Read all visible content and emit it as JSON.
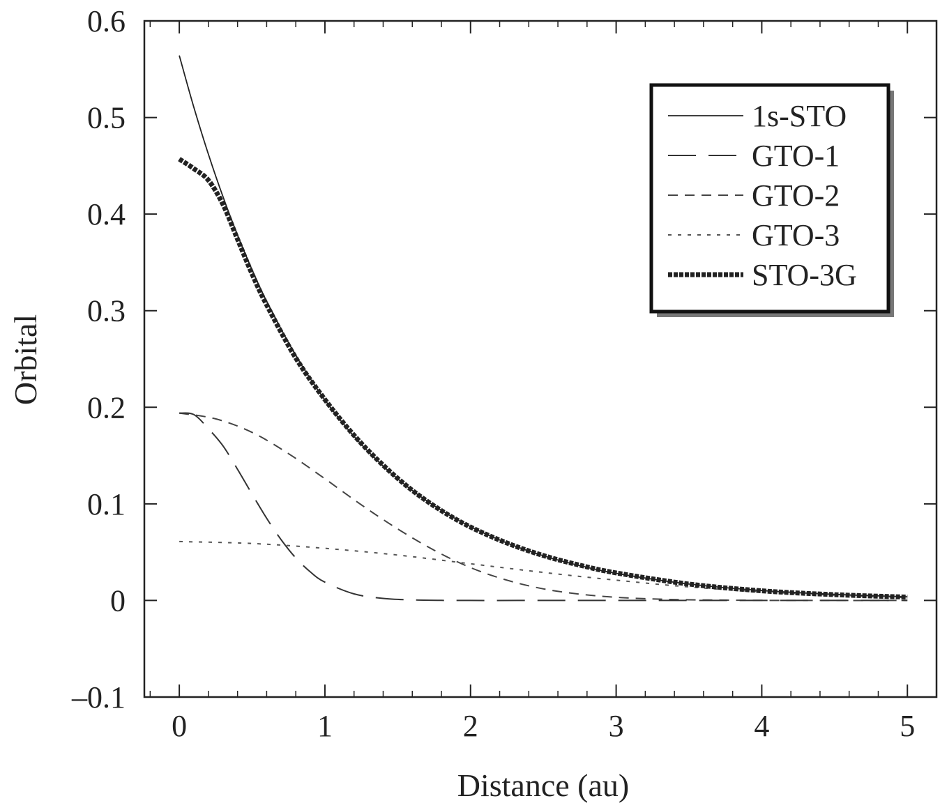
{
  "chart_data": {
    "type": "line",
    "title": "",
    "xlabel": "Distance (au)",
    "ylabel": "Orbital",
    "xlim": [
      -0.24,
      5.2
    ],
    "ylim": [
      -0.1,
      0.6
    ],
    "x_ticks": [
      0,
      1,
      2,
      3,
      4,
      5
    ],
    "x_tick_labels": [
      "0",
      "1",
      "2",
      "3",
      "4",
      "5"
    ],
    "y_ticks": [
      -0.1,
      0,
      0.1,
      0.2,
      0.3,
      0.4,
      0.5,
      0.6
    ],
    "y_tick_labels": [
      "–0.1",
      "0",
      "0.1",
      "0.2",
      "0.3",
      "0.4",
      "0.5",
      "0.6"
    ],
    "grid": false,
    "legend_position": "top-right",
    "series": [
      {
        "name": "1s-STO",
        "style": "solid-thin",
        "color": "#222222",
        "x": [
          0,
          0.1,
          0.2,
          0.3,
          0.4,
          0.5,
          0.6,
          0.8,
          1.0,
          1.2,
          1.4,
          1.6,
          1.8,
          2.0,
          2.25,
          2.5,
          2.75,
          3.0,
          3.5,
          4.0,
          4.5,
          5.0
        ],
        "y": [
          0.5642,
          0.5105,
          0.4619,
          0.418,
          0.3782,
          0.3422,
          0.3096,
          0.2535,
          0.2076,
          0.1699,
          0.1391,
          0.1139,
          0.0933,
          0.0764,
          0.0595,
          0.0463,
          0.0361,
          0.0281,
          0.017,
          0.0103,
          0.0063,
          0.0038
        ]
      },
      {
        "name": "GTO-1",
        "style": "long-dash",
        "color": "#333333",
        "x": [
          0,
          0.1,
          0.2,
          0.3,
          0.4,
          0.5,
          0.6,
          0.7,
          0.8,
          0.9,
          1.0,
          1.2,
          1.4,
          1.6,
          1.8,
          2.0,
          2.5,
          3.0,
          3.5,
          4.0,
          4.5,
          5.0
        ],
        "y": [
          0.194,
          0.1924,
          0.1778,
          0.16,
          0.1358,
          0.1101,
          0.0851,
          0.0627,
          0.044,
          0.0295,
          0.0189,
          0.0068,
          0.0021,
          0.0006,
          0.0001,
          0.0,
          0.0,
          0.0,
          0.0,
          0.0,
          0.0,
          0.0
        ]
      },
      {
        "name": "GTO-2",
        "style": "dash",
        "color": "#444444",
        "x": [
          0,
          0.25,
          0.5,
          0.75,
          1.0,
          1.25,
          1.5,
          1.75,
          2.0,
          2.25,
          2.5,
          2.75,
          3.0,
          3.25,
          3.5,
          4.0,
          4.5,
          5.0
        ],
        "y": [
          0.194,
          0.188,
          0.174,
          0.152,
          0.126,
          0.099,
          0.074,
          0.052,
          0.034,
          0.021,
          0.012,
          0.0065,
          0.0033,
          0.0016,
          0.0007,
          0.0001,
          0.0,
          0.0
        ]
      },
      {
        "name": "GTO-3",
        "style": "dot",
        "color": "#555555",
        "x": [
          0,
          0.5,
          1.0,
          1.5,
          2.0,
          2.5,
          3.0,
          3.5,
          4.0,
          4.5,
          5.0
        ],
        "y": [
          0.061,
          0.059,
          0.054,
          0.047,
          0.038,
          0.029,
          0.021,
          0.014,
          0.009,
          0.0055,
          0.003
        ]
      },
      {
        "name": "STO-3G",
        "style": "thick-dotted",
        "color": "#222222",
        "x": [
          0,
          0.1,
          0.2,
          0.3,
          0.4,
          0.5,
          0.6,
          0.8,
          1.0,
          1.2,
          1.4,
          1.6,
          1.8,
          2.0,
          2.25,
          2.5,
          2.75,
          3.0,
          3.5,
          4.0,
          4.5,
          5.0
        ],
        "y": [
          0.457,
          0.447,
          0.435,
          0.41,
          0.374,
          0.338,
          0.306,
          0.251,
          0.208,
          0.171,
          0.14,
          0.114,
          0.093,
          0.076,
          0.0595,
          0.0465,
          0.0365,
          0.0285,
          0.017,
          0.01,
          0.006,
          0.0035
        ]
      }
    ]
  }
}
